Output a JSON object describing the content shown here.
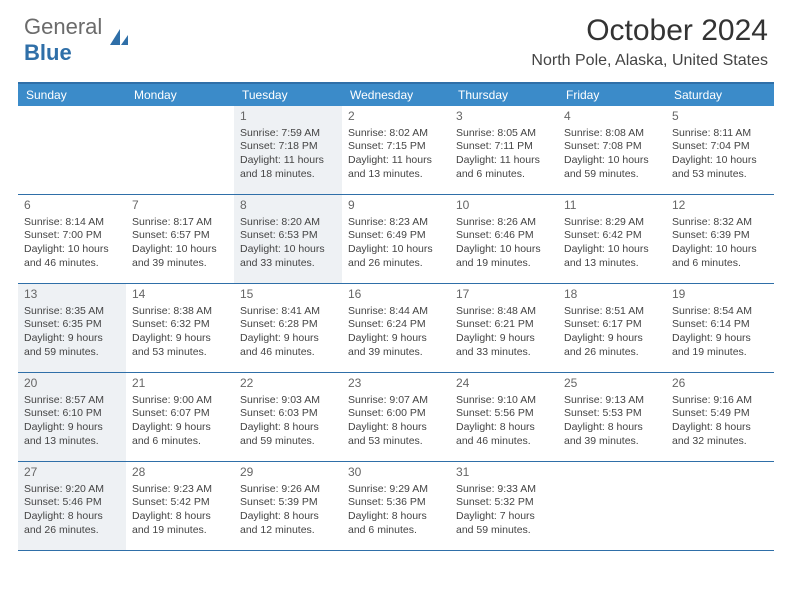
{
  "logo": {
    "word1": "General",
    "word2": "Blue"
  },
  "title": "October 2024",
  "location": "North Pole, Alaska, United States",
  "day_headers": [
    "Sunday",
    "Monday",
    "Tuesday",
    "Wednesday",
    "Thursday",
    "Friday",
    "Saturday"
  ],
  "colors": {
    "header_bg": "#3b8bc9",
    "rule": "#2f6fa8",
    "shade": "#eef1f4",
    "logo_gray": "#6b6b6b",
    "logo_blue": "#2f6fa8"
  },
  "weeks": [
    [
      {
        "n": "",
        "sr": "",
        "ss": "",
        "dl1": "",
        "dl2": "",
        "shade": false
      },
      {
        "n": "",
        "sr": "",
        "ss": "",
        "dl1": "",
        "dl2": "",
        "shade": false
      },
      {
        "n": "1",
        "sr": "Sunrise: 7:59 AM",
        "ss": "Sunset: 7:18 PM",
        "dl1": "Daylight: 11 hours",
        "dl2": "and 18 minutes.",
        "shade": true
      },
      {
        "n": "2",
        "sr": "Sunrise: 8:02 AM",
        "ss": "Sunset: 7:15 PM",
        "dl1": "Daylight: 11 hours",
        "dl2": "and 13 minutes.",
        "shade": false
      },
      {
        "n": "3",
        "sr": "Sunrise: 8:05 AM",
        "ss": "Sunset: 7:11 PM",
        "dl1": "Daylight: 11 hours",
        "dl2": "and 6 minutes.",
        "shade": false
      },
      {
        "n": "4",
        "sr": "Sunrise: 8:08 AM",
        "ss": "Sunset: 7:08 PM",
        "dl1": "Daylight: 10 hours",
        "dl2": "and 59 minutes.",
        "shade": false
      },
      {
        "n": "5",
        "sr": "Sunrise: 8:11 AM",
        "ss": "Sunset: 7:04 PM",
        "dl1": "Daylight: 10 hours",
        "dl2": "and 53 minutes.",
        "shade": false
      }
    ],
    [
      {
        "n": "6",
        "sr": "Sunrise: 8:14 AM",
        "ss": "Sunset: 7:00 PM",
        "dl1": "Daylight: 10 hours",
        "dl2": "and 46 minutes.",
        "shade": false
      },
      {
        "n": "7",
        "sr": "Sunrise: 8:17 AM",
        "ss": "Sunset: 6:57 PM",
        "dl1": "Daylight: 10 hours",
        "dl2": "and 39 minutes.",
        "shade": false
      },
      {
        "n": "8",
        "sr": "Sunrise: 8:20 AM",
        "ss": "Sunset: 6:53 PM",
        "dl1": "Daylight: 10 hours",
        "dl2": "and 33 minutes.",
        "shade": true
      },
      {
        "n": "9",
        "sr": "Sunrise: 8:23 AM",
        "ss": "Sunset: 6:49 PM",
        "dl1": "Daylight: 10 hours",
        "dl2": "and 26 minutes.",
        "shade": false
      },
      {
        "n": "10",
        "sr": "Sunrise: 8:26 AM",
        "ss": "Sunset: 6:46 PM",
        "dl1": "Daylight: 10 hours",
        "dl2": "and 19 minutes.",
        "shade": false
      },
      {
        "n": "11",
        "sr": "Sunrise: 8:29 AM",
        "ss": "Sunset: 6:42 PM",
        "dl1": "Daylight: 10 hours",
        "dl2": "and 13 minutes.",
        "shade": false
      },
      {
        "n": "12",
        "sr": "Sunrise: 8:32 AM",
        "ss": "Sunset: 6:39 PM",
        "dl1": "Daylight: 10 hours",
        "dl2": "and 6 minutes.",
        "shade": false
      }
    ],
    [
      {
        "n": "13",
        "sr": "Sunrise: 8:35 AM",
        "ss": "Sunset: 6:35 PM",
        "dl1": "Daylight: 9 hours",
        "dl2": "and 59 minutes.",
        "shade": true
      },
      {
        "n": "14",
        "sr": "Sunrise: 8:38 AM",
        "ss": "Sunset: 6:32 PM",
        "dl1": "Daylight: 9 hours",
        "dl2": "and 53 minutes.",
        "shade": false
      },
      {
        "n": "15",
        "sr": "Sunrise: 8:41 AM",
        "ss": "Sunset: 6:28 PM",
        "dl1": "Daylight: 9 hours",
        "dl2": "and 46 minutes.",
        "shade": false
      },
      {
        "n": "16",
        "sr": "Sunrise: 8:44 AM",
        "ss": "Sunset: 6:24 PM",
        "dl1": "Daylight: 9 hours",
        "dl2": "and 39 minutes.",
        "shade": false
      },
      {
        "n": "17",
        "sr": "Sunrise: 8:48 AM",
        "ss": "Sunset: 6:21 PM",
        "dl1": "Daylight: 9 hours",
        "dl2": "and 33 minutes.",
        "shade": false
      },
      {
        "n": "18",
        "sr": "Sunrise: 8:51 AM",
        "ss": "Sunset: 6:17 PM",
        "dl1": "Daylight: 9 hours",
        "dl2": "and 26 minutes.",
        "shade": false
      },
      {
        "n": "19",
        "sr": "Sunrise: 8:54 AM",
        "ss": "Sunset: 6:14 PM",
        "dl1": "Daylight: 9 hours",
        "dl2": "and 19 minutes.",
        "shade": false
      }
    ],
    [
      {
        "n": "20",
        "sr": "Sunrise: 8:57 AM",
        "ss": "Sunset: 6:10 PM",
        "dl1": "Daylight: 9 hours",
        "dl2": "and 13 minutes.",
        "shade": true
      },
      {
        "n": "21",
        "sr": "Sunrise: 9:00 AM",
        "ss": "Sunset: 6:07 PM",
        "dl1": "Daylight: 9 hours",
        "dl2": "and 6 minutes.",
        "shade": false
      },
      {
        "n": "22",
        "sr": "Sunrise: 9:03 AM",
        "ss": "Sunset: 6:03 PM",
        "dl1": "Daylight: 8 hours",
        "dl2": "and 59 minutes.",
        "shade": false
      },
      {
        "n": "23",
        "sr": "Sunrise: 9:07 AM",
        "ss": "Sunset: 6:00 PM",
        "dl1": "Daylight: 8 hours",
        "dl2": "and 53 minutes.",
        "shade": false
      },
      {
        "n": "24",
        "sr": "Sunrise: 9:10 AM",
        "ss": "Sunset: 5:56 PM",
        "dl1": "Daylight: 8 hours",
        "dl2": "and 46 minutes.",
        "shade": false
      },
      {
        "n": "25",
        "sr": "Sunrise: 9:13 AM",
        "ss": "Sunset: 5:53 PM",
        "dl1": "Daylight: 8 hours",
        "dl2": "and 39 minutes.",
        "shade": false
      },
      {
        "n": "26",
        "sr": "Sunrise: 9:16 AM",
        "ss": "Sunset: 5:49 PM",
        "dl1": "Daylight: 8 hours",
        "dl2": "and 32 minutes.",
        "shade": false
      }
    ],
    [
      {
        "n": "27",
        "sr": "Sunrise: 9:20 AM",
        "ss": "Sunset: 5:46 PM",
        "dl1": "Daylight: 8 hours",
        "dl2": "and 26 minutes.",
        "shade": true
      },
      {
        "n": "28",
        "sr": "Sunrise: 9:23 AM",
        "ss": "Sunset: 5:42 PM",
        "dl1": "Daylight: 8 hours",
        "dl2": "and 19 minutes.",
        "shade": false
      },
      {
        "n": "29",
        "sr": "Sunrise: 9:26 AM",
        "ss": "Sunset: 5:39 PM",
        "dl1": "Daylight: 8 hours",
        "dl2": "and 12 minutes.",
        "shade": false
      },
      {
        "n": "30",
        "sr": "Sunrise: 9:29 AM",
        "ss": "Sunset: 5:36 PM",
        "dl1": "Daylight: 8 hours",
        "dl2": "and 6 minutes.",
        "shade": false
      },
      {
        "n": "31",
        "sr": "Sunrise: 9:33 AM",
        "ss": "Sunset: 5:32 PM",
        "dl1": "Daylight: 7 hours",
        "dl2": "and 59 minutes.",
        "shade": false
      },
      {
        "n": "",
        "sr": "",
        "ss": "",
        "dl1": "",
        "dl2": "",
        "shade": false
      },
      {
        "n": "",
        "sr": "",
        "ss": "",
        "dl1": "",
        "dl2": "",
        "shade": false
      }
    ]
  ]
}
